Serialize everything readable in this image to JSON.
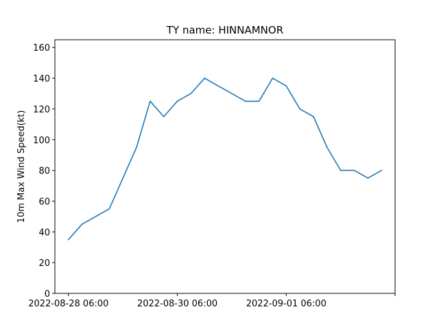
{
  "chart_data": {
    "type": "line",
    "title": "TY name: HINNAMNOR",
    "xlabel": "",
    "ylabel": "10m Max Wind Speed(kt)",
    "ylim": [
      0,
      165
    ],
    "yticks": [
      0,
      20,
      40,
      60,
      80,
      100,
      120,
      140,
      160
    ],
    "x_tick_labels": [
      "2022-08-28 06:00",
      "2022-08-30 06:00",
      "2022-09-01 06:00",
      ""
    ],
    "x_tick_dates": [
      "2022-08-28 06:00",
      "2022-08-30 06:00",
      "2022-09-01 06:00",
      "2022-09-03 06:00"
    ],
    "xlim": [
      "2022-08-28 00:00",
      "2022-09-03 06:00"
    ],
    "grid": false,
    "line_color": "#1f77b4",
    "x": [
      "2022-08-28 06:00",
      "2022-08-28 12:00",
      "2022-08-29 00:00",
      "2022-08-29 06:00",
      "2022-08-29 12:00",
      "2022-08-29 18:00",
      "2022-08-30 00:00",
      "2022-08-30 06:00",
      "2022-08-30 12:00",
      "2022-08-30 18:00",
      "2022-08-31 00:00",
      "2022-08-31 06:00",
      "2022-08-31 12:00",
      "2022-08-31 18:00",
      "2022-09-01 00:00",
      "2022-09-01 06:00",
      "2022-09-01 12:00",
      "2022-09-01 18:00",
      "2022-09-02 00:00",
      "2022-09-02 06:00",
      "2022-09-02 12:00",
      "2022-09-02 18:00",
      "2022-09-03 00:00"
    ],
    "y": [
      35,
      45,
      55,
      75,
      95,
      125,
      115,
      125,
      130,
      140,
      135,
      130,
      125,
      125,
      140,
      135,
      120,
      115,
      95,
      80,
      80,
      75,
      80
    ]
  }
}
